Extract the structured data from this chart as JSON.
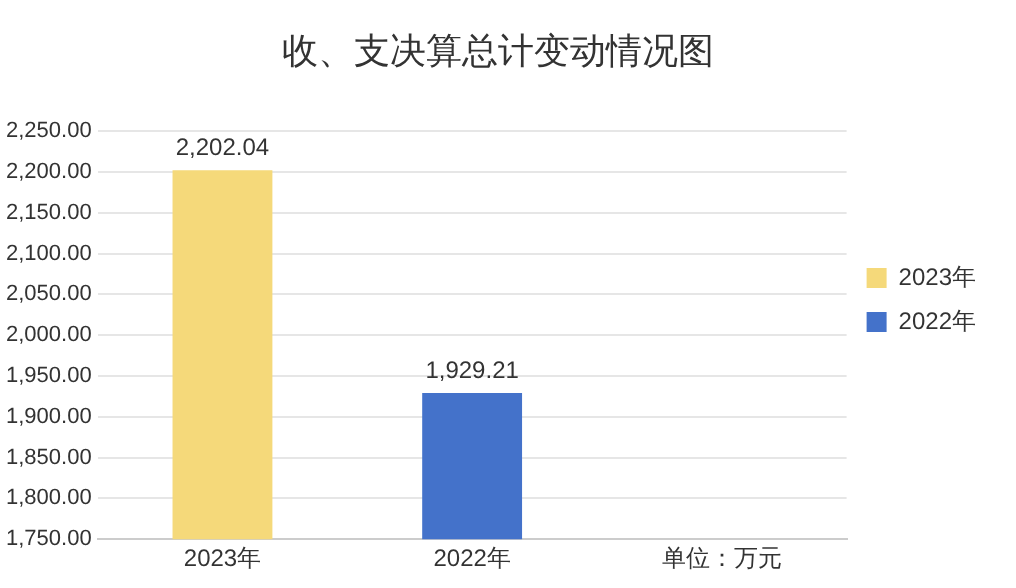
{
  "chart_data": {
    "type": "bar",
    "title": "收、支决算总计变动情况图",
    "categories": [
      "2023年",
      "2022年",
      "单位：万元"
    ],
    "series": [
      {
        "name": "2023年",
        "color": "#f5d97a",
        "values": [
          2202.04,
          null,
          null
        ],
        "value_labels": [
          "2,202.04",
          null,
          null
        ]
      },
      {
        "name": "2022年",
        "color": "#4472ca",
        "values": [
          null,
          1929.21,
          null
        ],
        "value_labels": [
          null,
          "1,929.21",
          null
        ]
      }
    ],
    "ylim": [
      1750,
      2250
    ],
    "yticks": [
      {
        "value": 1750,
        "label": "1,750.00"
      },
      {
        "value": 1800,
        "label": "1,800.00"
      },
      {
        "value": 1850,
        "label": "1,850.00"
      },
      {
        "value": 1900,
        "label": "1,900.00"
      },
      {
        "value": 1950,
        "label": "1,950.00"
      },
      {
        "value": 2000,
        "label": "2,000.00"
      },
      {
        "value": 2050,
        "label": "2,050.00"
      },
      {
        "value": 2100,
        "label": "2,100.00"
      },
      {
        "value": 2150,
        "label": "2,150.00"
      },
      {
        "value": 2200,
        "label": "2,200.00"
      },
      {
        "value": 2250,
        "label": "2,250.00"
      }
    ],
    "grid": "y",
    "legend": "right"
  }
}
